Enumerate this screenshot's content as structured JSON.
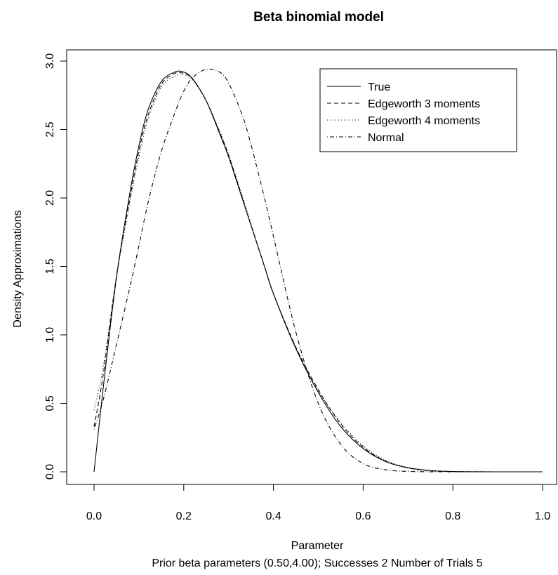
{
  "chart_data": {
    "type": "line",
    "title": "Beta binomial model",
    "xlabel": "Parameter",
    "subtitle": "Prior beta parameters (0.50,4.00); Successes  2 Number of Trials  5",
    "ylabel": "Density Approximations",
    "xlim": [
      0,
      1
    ],
    "ylim": [
      0,
      3
    ],
    "xticks": [
      "0.0",
      "0.2",
      "0.4",
      "0.6",
      "0.8",
      "1.0"
    ],
    "yticks": [
      "0.0",
      "0.5",
      "1.0",
      "1.5",
      "2.0",
      "2.5",
      "3.0"
    ],
    "grid": false,
    "legend_position": "top-right",
    "x": [
      0.0,
      0.02,
      0.05,
      0.08,
      0.1,
      0.12,
      0.15,
      0.18,
      0.2,
      0.22,
      0.25,
      0.28,
      0.3,
      0.33,
      0.35,
      0.38,
      0.4,
      0.45,
      0.5,
      0.55,
      0.6,
      0.65,
      0.7,
      0.75,
      0.8,
      0.85,
      0.9,
      0.95,
      1.0
    ],
    "series": [
      {
        "name": "True",
        "line_style": "solid",
        "values": [
          0.0,
          0.6,
          1.42,
          2.04,
          2.38,
          2.64,
          2.85,
          2.92,
          2.92,
          2.87,
          2.71,
          2.47,
          2.3,
          2.0,
          1.8,
          1.5,
          1.3,
          0.9,
          0.58,
          0.33,
          0.17,
          0.075,
          0.029,
          0.009,
          0.002,
          0.0004,
          0.0,
          0.0,
          0.0
        ]
      },
      {
        "name": "Edgeworth 3 moments",
        "line_style": "dashed",
        "values": [
          0.33,
          0.7,
          1.43,
          2.0,
          2.34,
          2.6,
          2.83,
          2.91,
          2.91,
          2.87,
          2.71,
          2.48,
          2.31,
          2.01,
          1.8,
          1.5,
          1.3,
          0.91,
          0.6,
          0.35,
          0.18,
          0.078,
          0.028,
          0.008,
          0.002,
          0.0003,
          0.0,
          0.0,
          0.0
        ]
      },
      {
        "name": "Edgeworth 4 moments",
        "line_style": "dotted",
        "values": [
          0.45,
          0.76,
          1.42,
          1.97,
          2.3,
          2.57,
          2.81,
          2.89,
          2.9,
          2.86,
          2.71,
          2.49,
          2.32,
          2.02,
          1.81,
          1.5,
          1.3,
          0.91,
          0.59,
          0.36,
          0.19,
          0.085,
          0.032,
          0.01,
          0.0025,
          0.0005,
          0.0,
          0.0,
          0.0
        ]
      },
      {
        "name": "Normal",
        "line_style": "dotdash",
        "values": [
          0.31,
          0.52,
          0.93,
          1.35,
          1.65,
          1.96,
          2.34,
          2.62,
          2.78,
          2.88,
          2.94,
          2.92,
          2.84,
          2.61,
          2.39,
          2.0,
          1.72,
          1.02,
          0.5,
          0.2,
          0.06,
          0.015,
          0.003,
          0.0004,
          0.0,
          0.0,
          0.0,
          0.0,
          0.0
        ]
      }
    ]
  }
}
